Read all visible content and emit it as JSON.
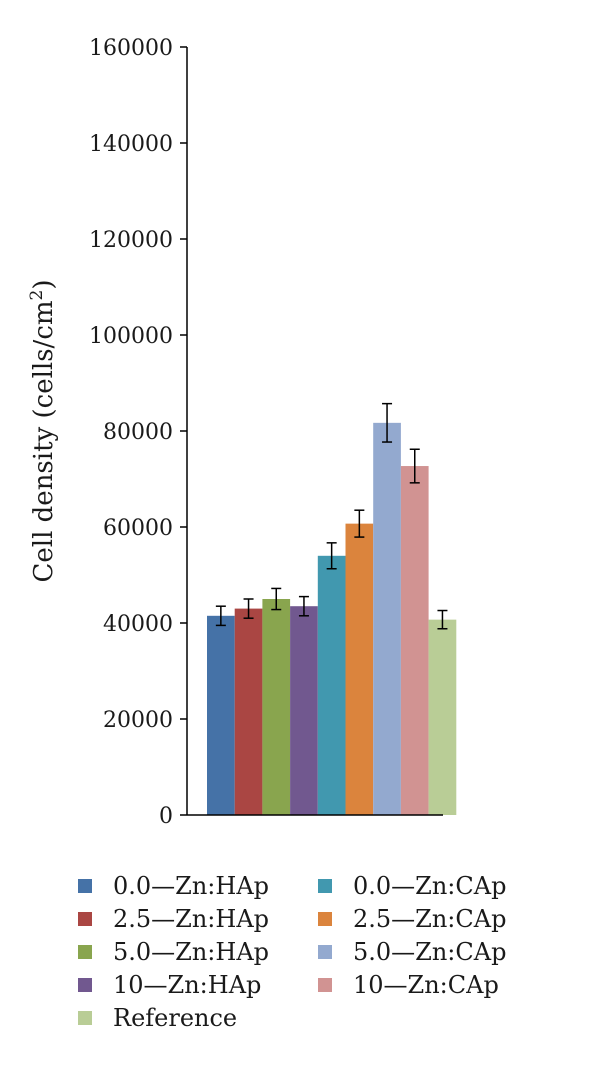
{
  "chart_data": {
    "type": "bar",
    "ylabel": "Cell density (cells/cm",
    "ylabel_sup": "2",
    "ylabel_close": ")",
    "ylim": [
      0,
      160000
    ],
    "yticks": [
      0,
      20000,
      40000,
      60000,
      80000,
      100000,
      120000,
      140000,
      160000
    ],
    "ytick_labels": [
      "0",
      "20000",
      "40000",
      "60000",
      "80000",
      "100000",
      "120000",
      "140000",
      "160000"
    ],
    "grid": false,
    "legend_placement": "bottom",
    "series": [
      {
        "name": "0.0—Zn:HAp",
        "value": 41500,
        "error": 2000,
        "color": "#4572a7"
      },
      {
        "name": "2.5—Zn:HAp",
        "value": 43000,
        "error": 2000,
        "color": "#aa4643"
      },
      {
        "name": "5.0—Zn:HAp",
        "value": 45000,
        "error": 2200,
        "color": "#89a54e"
      },
      {
        "name": "10—Zn:HAp",
        "value": 43500,
        "error": 2000,
        "color": "#71588f"
      },
      {
        "name": "0.0—Zn:CAp",
        "value": 54000,
        "error": 2700,
        "color": "#4198af"
      },
      {
        "name": "2.5—Zn:CAp",
        "value": 60700,
        "error": 2800,
        "color": "#db843d"
      },
      {
        "name": "5.0—Zn:CAp",
        "value": 81700,
        "error": 4000,
        "color": "#93a9cf"
      },
      {
        "name": "10—Zn:CAp",
        "value": 72700,
        "error": 3500,
        "color": "#d19392"
      },
      {
        "name": "Reference",
        "value": 40700,
        "error": 1900,
        "color": "#b9cd96"
      }
    ]
  }
}
